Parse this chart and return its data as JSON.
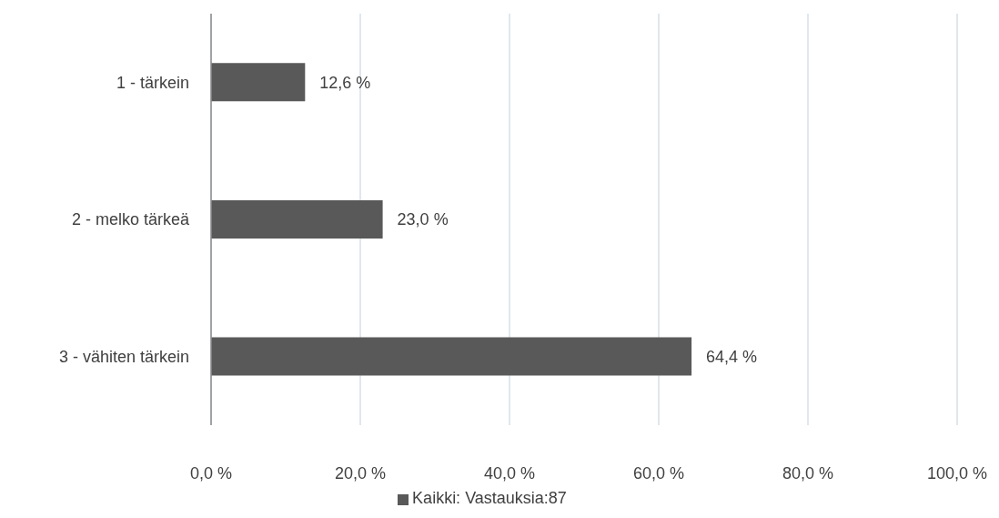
{
  "chart_data": {
    "type": "bar",
    "orientation": "horizontal",
    "categories": [
      "1 - tärkein",
      "2 - melko tärkeä",
      "3 - vähiten tärkein"
    ],
    "series": [
      {
        "name": "Kaikki: Vastauksia:87",
        "color": "#595959",
        "values": [
          12.6,
          23.0,
          64.4
        ],
        "value_labels": [
          "12,6 %",
          "23,0 %",
          "64,4 %"
        ]
      }
    ],
    "xlim": [
      0,
      100
    ],
    "xticks": [
      {
        "value": 0,
        "label": "0,0 %"
      },
      {
        "value": 20,
        "label": "20,0 %"
      },
      {
        "value": 40,
        "label": "40,0 %"
      },
      {
        "value": 60,
        "label": "60,0 %"
      },
      {
        "value": 80,
        "label": "80,0 %"
      },
      {
        "value": 100,
        "label": "100,0 %"
      }
    ],
    "grid": "x",
    "legend": "bottom"
  }
}
